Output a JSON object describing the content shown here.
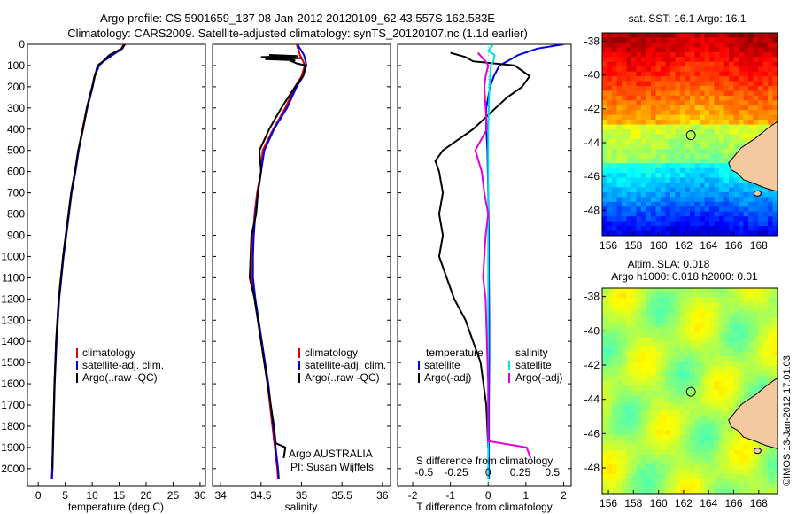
{
  "title_line1": "Argo profile: CS 5901659_137 08-Jan-2012 20120109_62 43.557S 162.583E",
  "title_line2": "Climatology: CARS2009. Satellite-adjusted climatology: synTS_20120107.nc (1.1d earlier)",
  "sst_title": "sat. SST: 16.1 Argo: 16.1",
  "sla_title1": "Altim. SLA: 0.018",
  "sla_title2": "Argo h1000: 0.018 h2000: 0.01",
  "credit": "©IMOS 13-Jan-2012 17:01:03",
  "agency": "Argo AUSTRALIA",
  "pi": "PI: Susan Wijffels",
  "colors": {
    "climatology": "#e00000",
    "satellite": "#0000e0",
    "argo": "#000000",
    "salinity_satellite": "#00e0e0",
    "salinity_argo": "#e000e0",
    "land": "#f5c9a0"
  },
  "icons": [
    "argo-float-location-circle"
  ],
  "chart_data": [
    {
      "type": "line",
      "panel": "temperature",
      "xlabel": "temperature (deg C)",
      "ylabel": "",
      "xlim": [
        -2,
        31
      ],
      "ylim": [
        2080,
        0
      ],
      "xticks": [
        0,
        5,
        10,
        15,
        20,
        25,
        30
      ],
      "yticks": [
        0,
        100,
        200,
        300,
        400,
        500,
        600,
        700,
        800,
        900,
        1000,
        1100,
        1200,
        1300,
        1400,
        1500,
        1600,
        1700,
        1800,
        1900,
        2000
      ],
      "legend": [
        "climatology",
        "satellite-adj. clim.",
        "Argo(..raw -QC)"
      ],
      "series": [
        {
          "name": "climatology",
          "depth": [
            0,
            20,
            50,
            80,
            100,
            150,
            200,
            300,
            400,
            500,
            600,
            700,
            800,
            900,
            1000,
            1200,
            1400,
            1600,
            1800,
            2000,
            2050
          ],
          "values": [
            15.8,
            15.4,
            13.6,
            12.0,
            11.2,
            10.4,
            10.0,
            9.0,
            8.2,
            7.4,
            6.8,
            6.1,
            5.6,
            5.1,
            4.6,
            3.8,
            3.3,
            3.0,
            2.8,
            2.6,
            2.5
          ]
        },
        {
          "name": "satellite-adj. clim.",
          "depth": [
            0,
            20,
            50,
            80,
            100,
            150,
            200,
            300,
            400,
            500,
            600,
            700,
            800,
            900,
            1000,
            1200,
            1400,
            1600,
            1800,
            2000,
            2050
          ],
          "values": [
            16.0,
            15.6,
            13.8,
            12.1,
            11.3,
            10.5,
            10.1,
            9.1,
            8.3,
            7.5,
            6.9,
            6.2,
            5.7,
            5.2,
            4.7,
            3.9,
            3.4,
            3.05,
            2.85,
            2.65,
            2.55
          ]
        },
        {
          "name": "Argo(..raw -QC)",
          "depth": [
            0,
            20,
            50,
            80,
            100,
            150,
            200,
            300,
            400,
            500,
            600,
            700,
            800,
            900,
            1000,
            1200,
            1400,
            1600,
            1800,
            2000
          ],
          "values": [
            16.1,
            15.5,
            13.2,
            12.0,
            11.0,
            10.5,
            10.0,
            9.0,
            8.3,
            7.4,
            6.8,
            6.1,
            5.6,
            5.1,
            4.6,
            3.8,
            3.3,
            3.0,
            2.8,
            2.6
          ]
        }
      ]
    },
    {
      "type": "line",
      "panel": "salinity",
      "xlabel": "salinity",
      "ylabel": "",
      "xlim": [
        33.9,
        36.1
      ],
      "ylim": [
        2080,
        0
      ],
      "xticks": [
        34,
        34.5,
        35,
        35.5,
        36
      ],
      "xtick_labels": [
        "34",
        "34.5",
        "35",
        "35.5",
        "36"
      ],
      "legend": [
        "climatology",
        "satellite-adj. clim.",
        "Argo(..raw -QC)"
      ],
      "series": [
        {
          "name": "climatology",
          "depth": [
            0,
            50,
            80,
            100,
            150,
            200,
            300,
            400,
            500,
            600,
            700,
            800,
            900,
            1000,
            1100,
            1200,
            1400,
            1600,
            1800,
            2000,
            2050
          ],
          "values": [
            34.94,
            34.98,
            35.02,
            35.04,
            35.0,
            34.92,
            34.8,
            34.65,
            34.52,
            34.5,
            34.45,
            34.42,
            34.4,
            34.38,
            34.38,
            34.42,
            34.5,
            34.58,
            34.64,
            34.7,
            34.71
          ]
        },
        {
          "name": "satellite-adj. clim.",
          "depth": [
            0,
            50,
            80,
            100,
            150,
            200,
            300,
            400,
            500,
            600,
            700,
            800,
            900,
            1000,
            1100,
            1200,
            1400,
            1600,
            1800,
            2000,
            2050
          ],
          "values": [
            34.95,
            35.03,
            35.05,
            35.06,
            35.02,
            34.94,
            34.82,
            34.66,
            34.54,
            34.5,
            34.46,
            34.43,
            34.41,
            34.4,
            34.4,
            34.43,
            34.51,
            34.59,
            34.65,
            34.71,
            34.72
          ]
        },
        {
          "name": "Argo(..raw -QC)",
          "depth": [
            50,
            55,
            60,
            65,
            70,
            75,
            80,
            90,
            100,
            150,
            200,
            300,
            400,
            500,
            600,
            700,
            800,
            900,
            1000,
            1100,
            1200,
            1300,
            1400,
            1600,
            1800,
            1880,
            1900,
            1950
          ],
          "values": [
            34.6,
            34.95,
            34.5,
            35.0,
            34.55,
            34.92,
            34.88,
            34.94,
            35.05,
            35.02,
            34.92,
            34.75,
            34.6,
            34.48,
            34.5,
            34.46,
            34.44,
            34.38,
            34.37,
            34.36,
            34.42,
            34.46,
            34.5,
            34.58,
            34.66,
            34.68,
            34.8,
            34.78
          ]
        }
      ]
    },
    {
      "type": "line",
      "panel": "differences",
      "xlabel": "T difference from climatology",
      "x2label": "S difference from climatology",
      "xlim": [
        -2.4,
        2.2
      ],
      "ylim": [
        2080,
        0
      ],
      "xticks": [
        -2,
        -1,
        0,
        1,
        2
      ],
      "x2ticks": [
        -0.5,
        -0.25,
        0,
        0.25,
        0.5
      ],
      "x2tick_labels": [
        "-0.5",
        "-0.25",
        "0",
        "0.25",
        "0.5"
      ],
      "legend_temperature": [
        "temperature",
        "satellite",
        "Argo(-adj)"
      ],
      "legend_salinity": [
        "salinity",
        "satellite",
        "Argo(-adj)"
      ],
      "series": [
        {
          "name": "satellite",
          "group": "temperature",
          "depth": [
            0,
            20,
            50,
            80,
            100,
            150,
            200,
            300,
            400,
            500,
            700,
            900,
            1100,
            1300,
            1500,
            1700,
            1900,
            2050
          ],
          "values": [
            2.0,
            1.3,
            0.8,
            0.5,
            0.3,
            0.15,
            0.05,
            -0.05,
            -0.05,
            -0.02,
            0.0,
            0.02,
            0.02,
            0.03,
            0.03,
            0.02,
            0.02,
            0.02
          ]
        },
        {
          "name": "Argo(-adj)",
          "group": "temperature",
          "depth": [
            40,
            60,
            80,
            100,
            150,
            200,
            250,
            300,
            350,
            400,
            450,
            500,
            550,
            600,
            700,
            800,
            900,
            1000,
            1100,
            1200,
            1300,
            1400,
            1500,
            1700,
            1900
          ],
          "values": [
            -1.0,
            -0.6,
            -0.4,
            0.7,
            1.1,
            0.9,
            0.5,
            0.2,
            -0.1,
            -0.4,
            -0.8,
            -1.2,
            -1.4,
            -1.3,
            -1.2,
            -1.3,
            -1.2,
            -1.3,
            -1.1,
            -0.9,
            -0.6,
            -0.4,
            -0.2,
            -0.05,
            0.0
          ]
        },
        {
          "name": "satellite",
          "group": "salinity",
          "depth": [
            0,
            30,
            50,
            80,
            100,
            200,
            400,
            600,
            800,
            1000,
            1400,
            1800,
            2050
          ],
          "values": [
            0.04,
            0.0,
            0.05,
            0.04,
            0.02,
            0.01,
            0.0,
            0.0,
            0.0,
            0.0,
            0.0,
            0.0,
            0.0
          ]
        },
        {
          "name": "Argo(-adj)",
          "group": "salinity",
          "depth": [
            40,
            60,
            80,
            100,
            150,
            200,
            300,
            400,
            500,
            600,
            700,
            800,
            900,
            1000,
            1100,
            1200,
            1400,
            1600,
            1800,
            1870,
            1900,
            1950
          ],
          "values": [
            -0.08,
            -0.05,
            -0.02,
            0.0,
            -0.02,
            -0.03,
            -0.02,
            -0.01,
            -0.1,
            -0.05,
            -0.03,
            0.0,
            -0.02,
            -0.03,
            -0.04,
            -0.02,
            -0.01,
            0.0,
            0.0,
            0.0,
            0.3,
            0.33
          ]
        }
      ]
    },
    {
      "type": "heatmap",
      "panel": "sst-map",
      "title": "sat. SST: 16.1 Argo: 16.1",
      "xlim": [
        155.5,
        169.5
      ],
      "ylim": [
        -49.5,
        -37.5
      ],
      "xticks": [
        156,
        158,
        160,
        162,
        164,
        166,
        168
      ],
      "yticks": [
        -38,
        -40,
        -42,
        -44,
        -46,
        -48
      ],
      "float_position": [
        162.583,
        -43.557
      ],
      "argo_value": 16.1
    },
    {
      "type": "heatmap",
      "panel": "sla-map",
      "title": "Altim. SLA: 0.018",
      "xlim": [
        155.5,
        169.5
      ],
      "ylim": [
        -49.5,
        -37.5
      ],
      "xticks": [
        156,
        158,
        160,
        162,
        164,
        166,
        168
      ],
      "yticks": [
        -38,
        -40,
        -42,
        -44,
        -46,
        -48
      ],
      "float_position": [
        162.583,
        -43.557
      ],
      "sla": 0.018
    }
  ]
}
